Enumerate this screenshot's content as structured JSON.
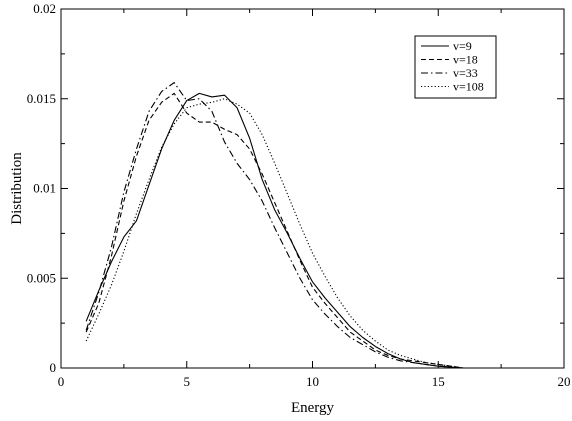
{
  "chart_data": {
    "type": "line",
    "title": "",
    "xlabel": "Energy",
    "ylabel": "Distribution",
    "xlim": [
      0,
      20
    ],
    "ylim": [
      0,
      0.02
    ],
    "xticks": [
      0,
      5,
      10,
      15,
      20
    ],
    "xtick_labels": [
      "0",
      "5",
      "10",
      "15",
      "20"
    ],
    "yticks": [
      0,
      0.005,
      0.01,
      0.015,
      0.02
    ],
    "ytick_labels": [
      "0",
      "0.005",
      "0.01",
      "0.015",
      "0.02"
    ],
    "grid": false,
    "legend_position": "top-right",
    "series": [
      {
        "name": "v=9",
        "style": "solid",
        "color": "#000000",
        "x": [
          1.0,
          1.5,
          2.0,
          2.5,
          3.0,
          3.5,
          4.0,
          4.5,
          5.0,
          5.5,
          6.0,
          6.5,
          7.0,
          7.5,
          8.0,
          8.5,
          9.0,
          9.5,
          10.0,
          10.5,
          11.0,
          11.5,
          12.0,
          12.5,
          13.0,
          13.5,
          14.0,
          14.5,
          15.0,
          15.5,
          16.0
        ],
        "y": [
          0.0026,
          0.0043,
          0.0059,
          0.0073,
          0.0082,
          0.0102,
          0.0122,
          0.0138,
          0.0149,
          0.0153,
          0.0151,
          0.0152,
          0.0145,
          0.0128,
          0.0105,
          0.0088,
          0.0075,
          0.0061,
          0.0048,
          0.0039,
          0.0031,
          0.0023,
          0.0017,
          0.0012,
          0.0008,
          0.0005,
          0.0003,
          0.0002,
          0.0001,
          5e-05,
          0.0
        ]
      },
      {
        "name": "v=18",
        "style": "dashed",
        "color": "#000000",
        "x": [
          1.0,
          1.5,
          2.0,
          2.5,
          3.0,
          3.5,
          4.0,
          4.5,
          5.0,
          5.5,
          6.0,
          6.5,
          7.0,
          7.5,
          8.0,
          8.5,
          9.0,
          9.5,
          10.0,
          10.5,
          11.0,
          11.5,
          12.0,
          12.5,
          13.0,
          13.5,
          14.0,
          14.5,
          15.0,
          15.5,
          16.0
        ],
        "y": [
          0.002,
          0.0036,
          0.0062,
          0.0093,
          0.0118,
          0.0138,
          0.0148,
          0.0153,
          0.0142,
          0.0137,
          0.0137,
          0.0133,
          0.013,
          0.0122,
          0.0108,
          0.0092,
          0.0076,
          0.006,
          0.0045,
          0.0036,
          0.0028,
          0.002,
          0.0015,
          0.001,
          0.0007,
          0.0005,
          0.0004,
          0.0003,
          0.0002,
          0.0001,
          0.0
        ]
      },
      {
        "name": "v=33",
        "style": "dashdot",
        "color": "#000000",
        "x": [
          1.0,
          1.5,
          2.0,
          2.5,
          3.0,
          3.5,
          4.0,
          4.5,
          5.0,
          5.5,
          6.0,
          6.5,
          7.0,
          7.5,
          8.0,
          8.5,
          9.0,
          9.5,
          10.0,
          10.5,
          11.0,
          11.5,
          12.0,
          12.5,
          13.0,
          13.5,
          14.0,
          14.5,
          15.0,
          15.5,
          16.0
        ],
        "y": [
          0.0021,
          0.0042,
          0.0067,
          0.0098,
          0.0122,
          0.0143,
          0.0154,
          0.0159,
          0.0149,
          0.015,
          0.0143,
          0.0126,
          0.0114,
          0.0105,
          0.0093,
          0.0078,
          0.0064,
          0.005,
          0.0038,
          0.003,
          0.0023,
          0.0017,
          0.0013,
          0.0009,
          0.0006,
          0.0004,
          0.0003,
          0.0002,
          0.0001,
          5e-05,
          0.0
        ]
      },
      {
        "name": "v=108",
        "style": "dotted",
        "color": "#000000",
        "x": [
          1.0,
          1.5,
          2.0,
          2.5,
          3.0,
          3.5,
          4.0,
          4.5,
          5.0,
          5.5,
          6.0,
          6.5,
          7.0,
          7.5,
          8.0,
          8.5,
          9.0,
          9.5,
          10.0,
          10.5,
          11.0,
          11.5,
          12.0,
          12.5,
          13.0,
          13.5,
          14.0,
          14.5,
          15.0,
          15.5,
          16.0
        ],
        "y": [
          0.0015,
          0.003,
          0.0046,
          0.0065,
          0.0086,
          0.0105,
          0.0123,
          0.0136,
          0.0145,
          0.0147,
          0.0148,
          0.015,
          0.0147,
          0.0142,
          0.013,
          0.0114,
          0.0097,
          0.008,
          0.0064,
          0.0051,
          0.0039,
          0.0029,
          0.0021,
          0.0015,
          0.001,
          0.0007,
          0.0005,
          0.0003,
          0.0002,
          0.0001,
          0.0
        ]
      }
    ]
  }
}
